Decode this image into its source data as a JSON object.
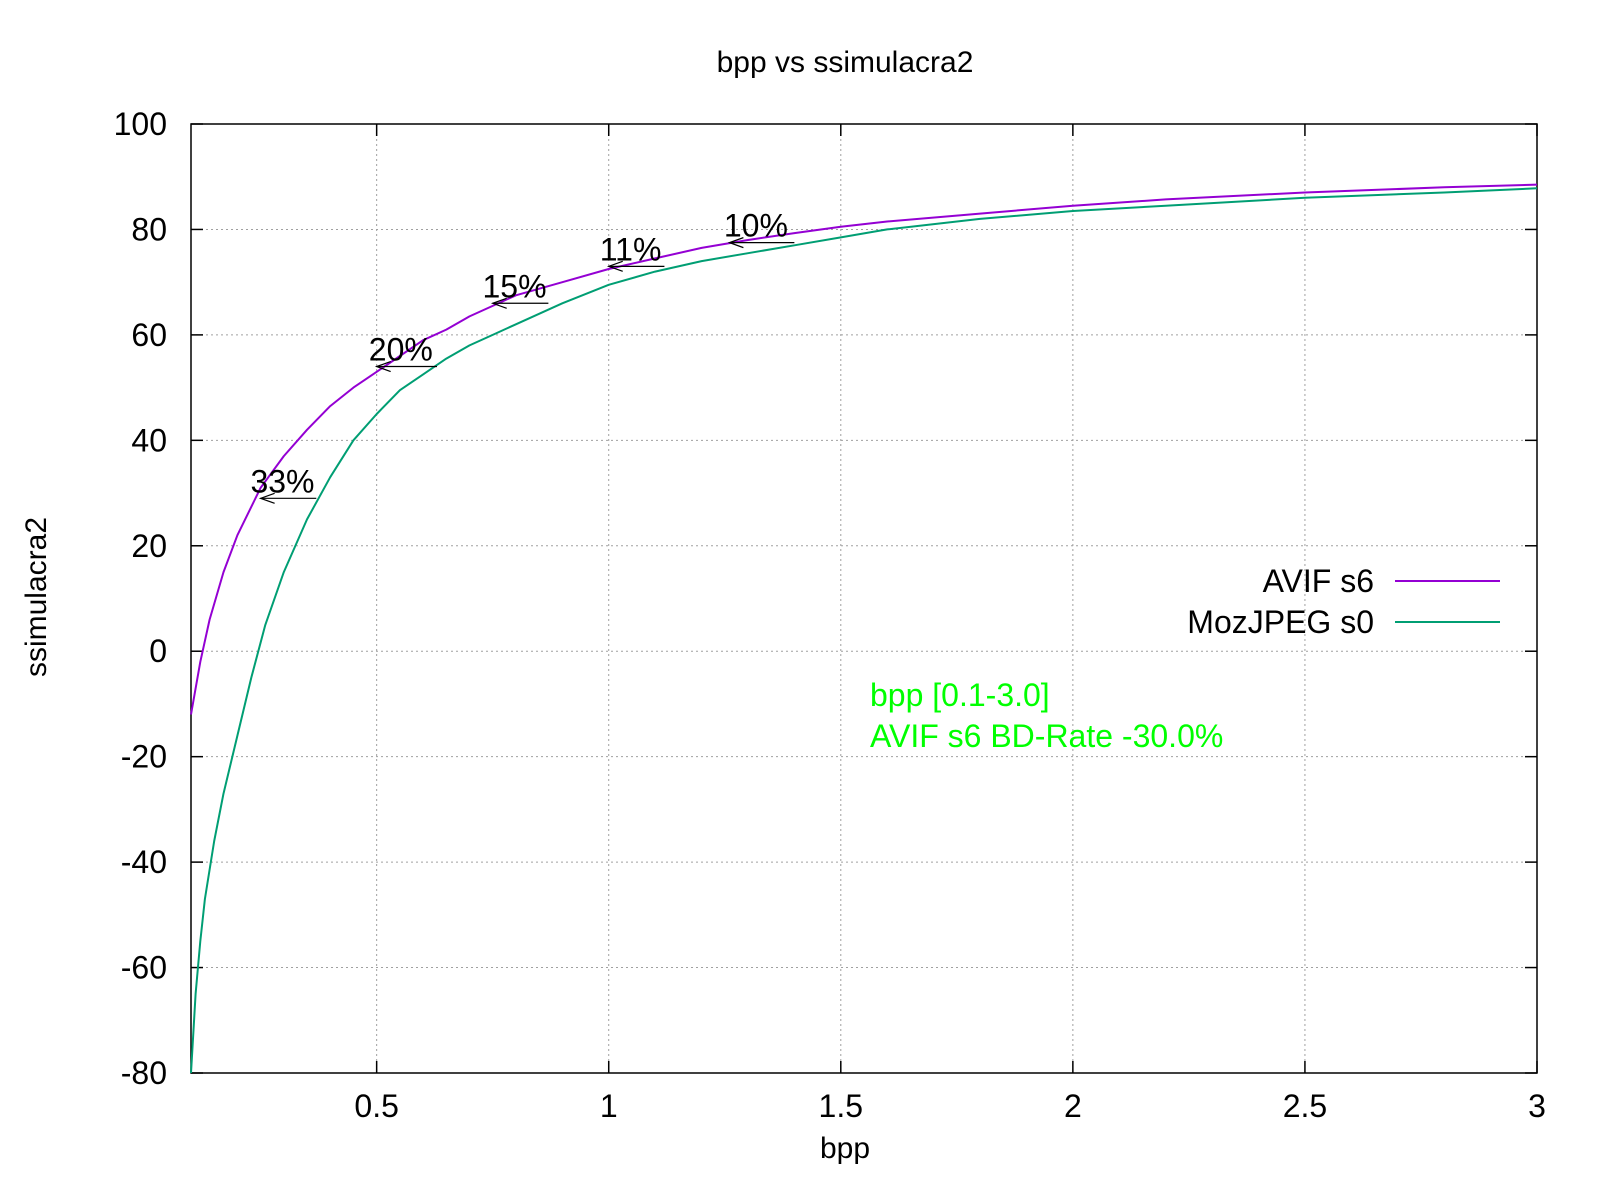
{
  "chart_data": {
    "type": "line",
    "title": "bpp vs ssimulacra2",
    "xlabel": "bpp",
    "ylabel": "ssimulacra2",
    "xlim": [
      0.1,
      3.0
    ],
    "ylim": [
      -80,
      100
    ],
    "x_ticks": [
      0.5,
      1,
      1.5,
      2,
      2.5,
      3
    ],
    "x_tick_labels": [
      "0.5",
      "1",
      "1.5",
      "2",
      "2.5",
      "3"
    ],
    "y_ticks": [
      -80,
      -60,
      -40,
      -20,
      0,
      20,
      40,
      60,
      80,
      100
    ],
    "y_tick_labels": [
      "-80",
      "-60",
      "-40",
      "-20",
      "0",
      "20",
      "40",
      "60",
      "80",
      "100"
    ],
    "grid": true,
    "legend_position": "right-middle",
    "series": [
      {
        "name": "AVIF s6",
        "color": "#9400d3",
        "points": [
          [
            0.1,
            -12
          ],
          [
            0.12,
            -2
          ],
          [
            0.14,
            6
          ],
          [
            0.17,
            15
          ],
          [
            0.2,
            22
          ],
          [
            0.25,
            31
          ],
          [
            0.3,
            37
          ],
          [
            0.35,
            42
          ],
          [
            0.4,
            46.5
          ],
          [
            0.45,
            50
          ],
          [
            0.5,
            53
          ],
          [
            0.55,
            56
          ],
          [
            0.6,
            59
          ],
          [
            0.65,
            61
          ],
          [
            0.7,
            63.5
          ],
          [
            0.75,
            65.5
          ],
          [
            0.8,
            67.5
          ],
          [
            0.9,
            70
          ],
          [
            1.0,
            72.5
          ],
          [
            1.1,
            74.5
          ],
          [
            1.2,
            76.5
          ],
          [
            1.3,
            78
          ],
          [
            1.4,
            79.3
          ],
          [
            1.5,
            80.5
          ],
          [
            1.6,
            81.5
          ],
          [
            1.8,
            83
          ],
          [
            2.0,
            84.5
          ],
          [
            2.2,
            85.7
          ],
          [
            2.5,
            87
          ],
          [
            2.8,
            88
          ],
          [
            3.0,
            88.5
          ]
        ]
      },
      {
        "name": "MozJPEG s0",
        "color": "#009e73",
        "points": [
          [
            0.1,
            -80
          ],
          [
            0.11,
            -65
          ],
          [
            0.12,
            -55
          ],
          [
            0.13,
            -47
          ],
          [
            0.15,
            -36
          ],
          [
            0.17,
            -27
          ],
          [
            0.2,
            -16
          ],
          [
            0.23,
            -5
          ],
          [
            0.26,
            5
          ],
          [
            0.3,
            15
          ],
          [
            0.35,
            25
          ],
          [
            0.4,
            33
          ],
          [
            0.45,
            40
          ],
          [
            0.5,
            45
          ],
          [
            0.55,
            49.5
          ],
          [
            0.6,
            52.5
          ],
          [
            0.65,
            55.5
          ],
          [
            0.7,
            58
          ],
          [
            0.75,
            60
          ],
          [
            0.8,
            62
          ],
          [
            0.85,
            64
          ],
          [
            0.9,
            66
          ],
          [
            1.0,
            69.5
          ],
          [
            1.1,
            72
          ],
          [
            1.2,
            74
          ],
          [
            1.3,
            75.5
          ],
          [
            1.4,
            77
          ],
          [
            1.5,
            78.5
          ],
          [
            1.6,
            80
          ],
          [
            1.8,
            82
          ],
          [
            2.0,
            83.5
          ],
          [
            2.2,
            84.5
          ],
          [
            2.5,
            86
          ],
          [
            2.8,
            87
          ],
          [
            3.0,
            87.8
          ]
        ]
      }
    ],
    "annotations": [
      {
        "text": "33%",
        "y": 29,
        "x_from": 0.37,
        "x_to": 0.25
      },
      {
        "text": "20%",
        "y": 54,
        "x_from": 0.63,
        "x_to": 0.5
      },
      {
        "text": "15%",
        "y": 66,
        "x_from": 0.87,
        "x_to": 0.75
      },
      {
        "text": "11%",
        "y": 73,
        "x_from": 1.12,
        "x_to": 1.0
      },
      {
        "text": "10%",
        "y": 77.5,
        "x_from": 1.4,
        "x_to": 1.26
      }
    ],
    "note_color": "#00ff00",
    "notes": [
      "bpp [0.1-3.0]",
      "AVIF s6 BD-Rate -30.0%"
    ]
  }
}
